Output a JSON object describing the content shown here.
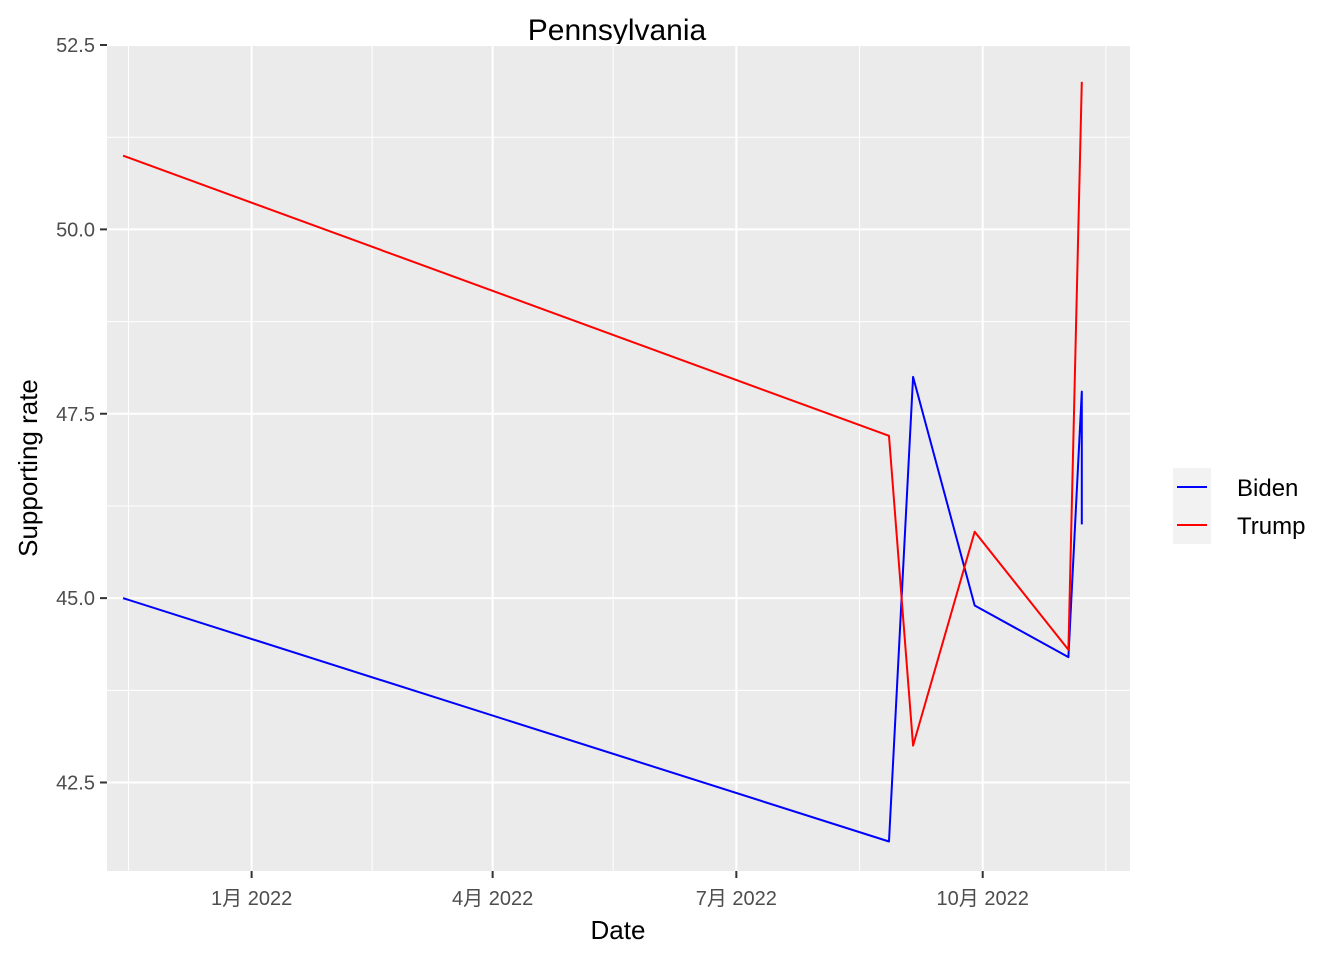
{
  "chart_data": {
    "type": "line",
    "title": "Pennsylvania",
    "xlabel": "Date",
    "ylabel": "Supporting rate",
    "x_axis_type": "date",
    "xlim": [
      "2021-11-08",
      "2022-11-25"
    ],
    "ylim": [
      41.3,
      52.5
    ],
    "x_ticks": [
      {
        "date": "2022-01-01",
        "label": "1月 2022"
      },
      {
        "date": "2022-04-01",
        "label": "4月 2022"
      },
      {
        "date": "2022-07-01",
        "label": "7月 2022"
      },
      {
        "date": "2022-10-01",
        "label": "10月 2022"
      }
    ],
    "x_minor_ticks": [
      "2021-11-16",
      "2022-02-15",
      "2022-05-16",
      "2022-08-16",
      "2022-11-16"
    ],
    "y_ticks": [
      42.5,
      45.0,
      47.5,
      50.0,
      52.5
    ],
    "y_tick_labels": [
      "42.5",
      "45.0",
      "47.5",
      "50.0",
      "52.5"
    ],
    "grid": true,
    "legend_position": "right",
    "series": [
      {
        "name": "Biden",
        "color": "#0000ff",
        "points": [
          {
            "x": "2021-11-14",
            "y": 45.0
          },
          {
            "x": "2022-08-27",
            "y": 41.7
          },
          {
            "x": "2022-09-05",
            "y": 48.0
          },
          {
            "x": "2022-09-28",
            "y": 44.9
          },
          {
            "x": "2022-11-02",
            "y": 44.2
          },
          {
            "x": "2022-11-07",
            "y": 47.8
          },
          {
            "x": "2022-11-07",
            "y": 46.0
          }
        ]
      },
      {
        "name": "Trump",
        "color": "#ff0000",
        "points": [
          {
            "x": "2021-11-14",
            "y": 51.0
          },
          {
            "x": "2022-08-27",
            "y": 47.2
          },
          {
            "x": "2022-09-05",
            "y": 43.0
          },
          {
            "x": "2022-09-28",
            "y": 45.9
          },
          {
            "x": "2022-11-02",
            "y": 44.3
          },
          {
            "x": "2022-11-07",
            "y": 52.0
          }
        ]
      }
    ]
  }
}
